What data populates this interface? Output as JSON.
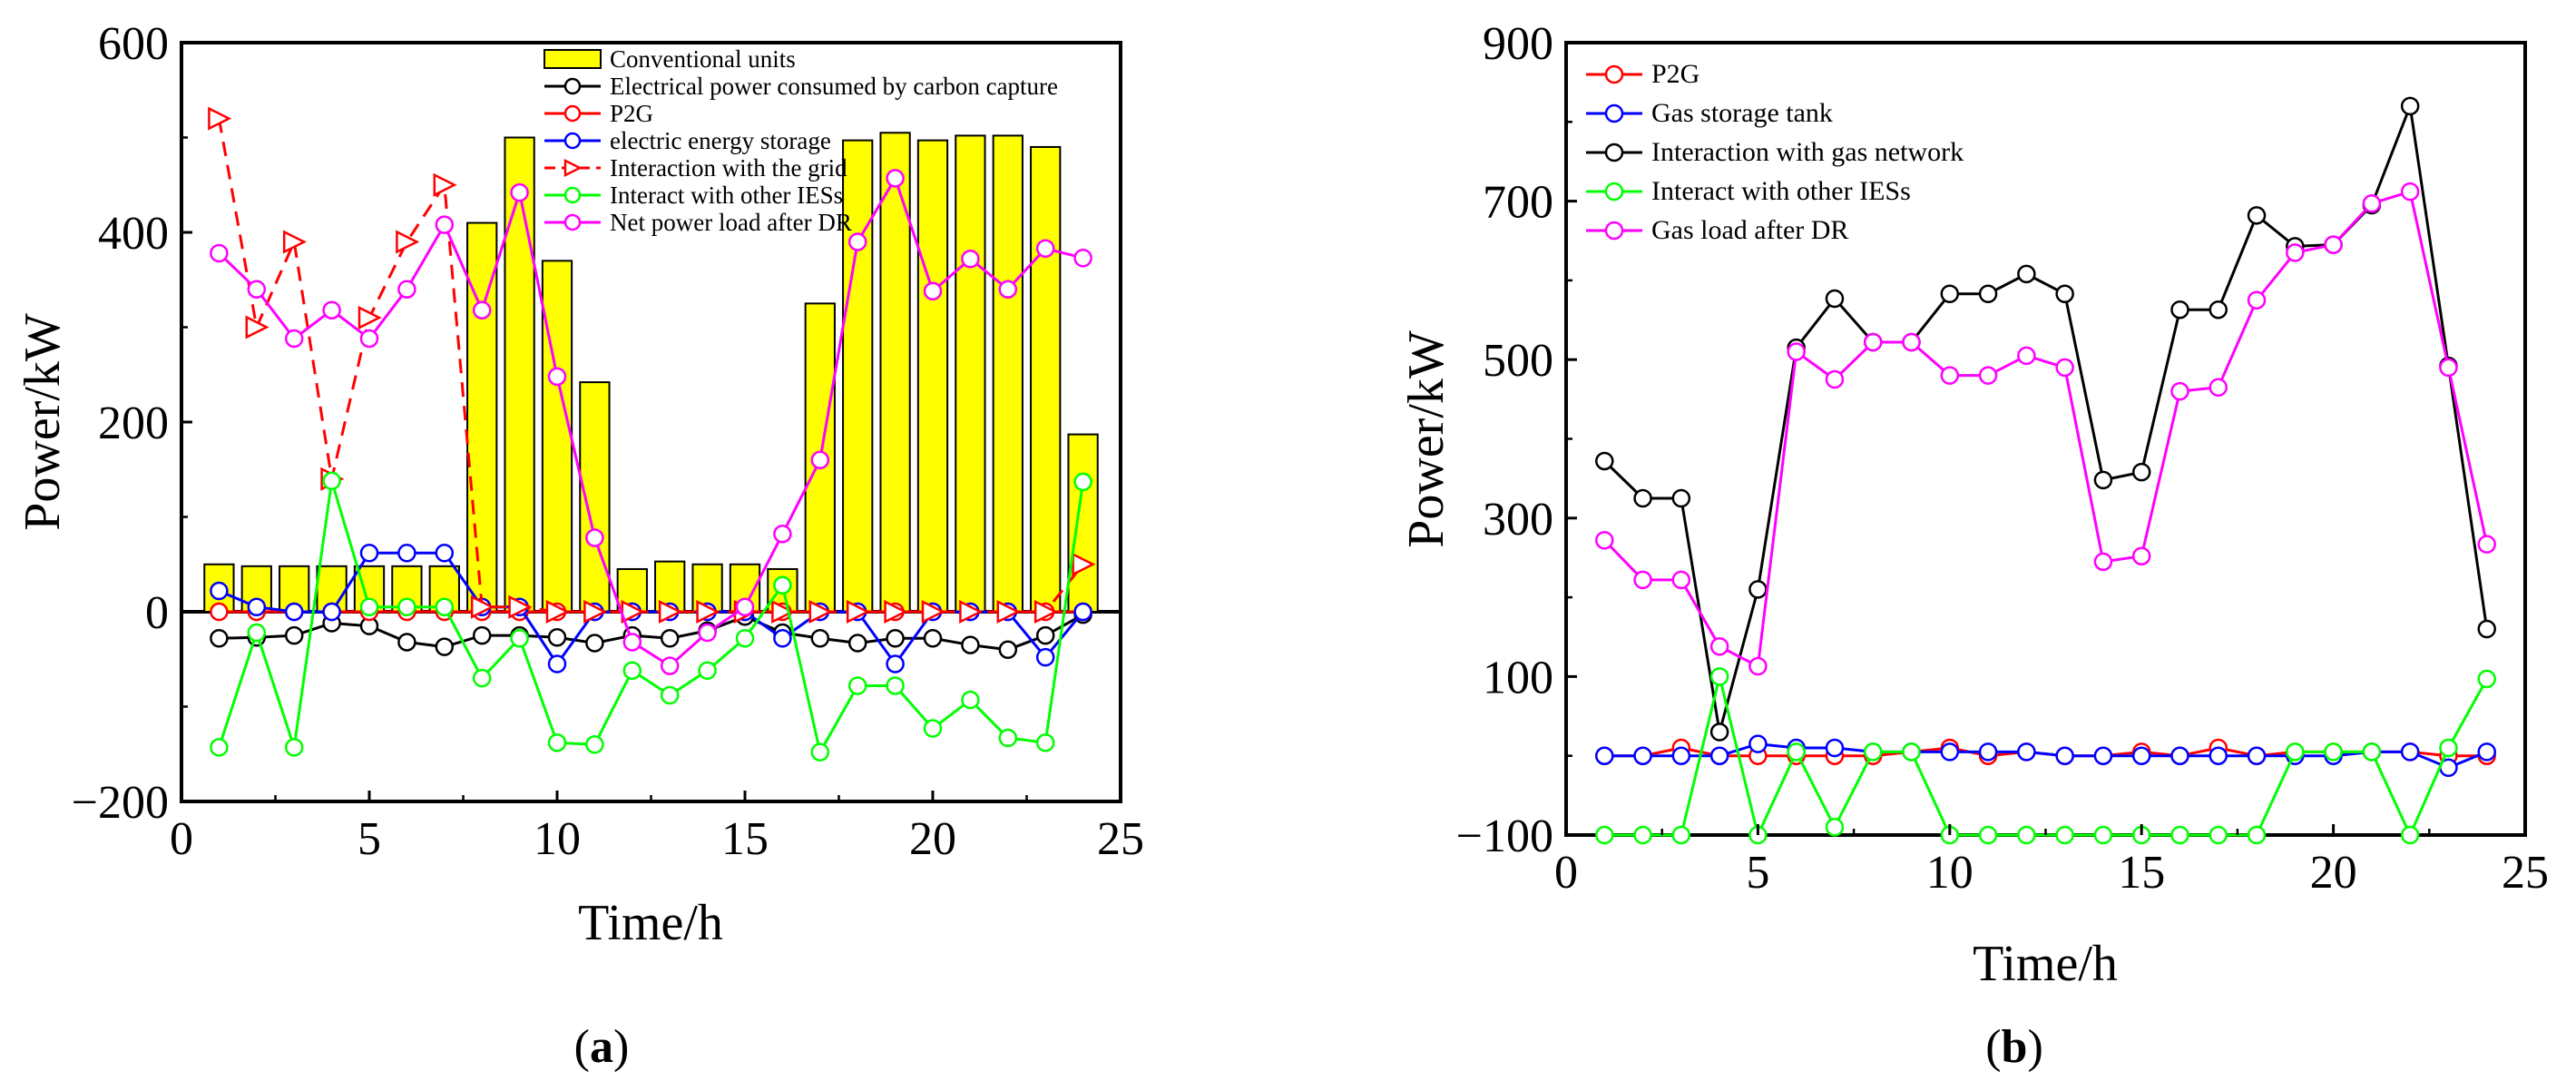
{
  "chart_data": [
    {
      "id": "a",
      "type": "bar+line",
      "caption_open": "(",
      "caption_letter": "a",
      "caption_close": ")",
      "xlabel": "Time/h",
      "ylabel": "Power/kW",
      "xlim": [
        0,
        25
      ],
      "ylim": [
        -200,
        600
      ],
      "xticks": [
        0,
        5,
        10,
        15,
        20,
        25
      ],
      "yticks": [
        -200,
        0,
        200,
        400,
        600
      ],
      "ytick_labels": [
        "−200",
        "0",
        "200",
        "400",
        "600"
      ],
      "x": [
        1,
        2,
        3,
        4,
        5,
        6,
        7,
        8,
        9,
        10,
        11,
        12,
        13,
        14,
        15,
        16,
        17,
        18,
        19,
        20,
        21,
        22,
        23,
        24
      ],
      "bars": {
        "name": "Conventional units",
        "color": "#ffff00",
        "values": [
          50,
          48,
          48,
          48,
          48,
          48,
          48,
          410,
          500,
          370,
          242,
          45,
          53,
          50,
          50,
          45,
          325,
          497,
          505,
          497,
          502,
          502,
          490,
          187
        ]
      },
      "series": [
        {
          "name": "Electrical power consumed by carbon capture",
          "color": "#000000",
          "marker": "circle",
          "dash": false,
          "values": [
            -28,
            -27,
            -25,
            -12,
            -15,
            -32,
            -37,
            -25,
            -25,
            -27,
            -33,
            -25,
            -28,
            -20,
            -5,
            -22,
            -28,
            -33,
            -28,
            -28,
            -35,
            -40,
            -25,
            -3
          ]
        },
        {
          "name": "P2G",
          "color": "#ff0000",
          "marker": "circle",
          "dash": false,
          "values": [
            0,
            0,
            0,
            0,
            0,
            0,
            0,
            0,
            0,
            0,
            0,
            0,
            0,
            0,
            0,
            0,
            0,
            0,
            0,
            0,
            0,
            0,
            0,
            0
          ]
        },
        {
          "name": "electric energy storage",
          "color": "#0000ff",
          "marker": "circle",
          "dash": false,
          "values": [
            22,
            5,
            0,
            0,
            62,
            62,
            62,
            5,
            5,
            -55,
            0,
            0,
            0,
            0,
            0,
            -28,
            0,
            0,
            -55,
            0,
            0,
            0,
            -48,
            0
          ]
        },
        {
          "name": "Interaction with the grid",
          "color": "#ff0000",
          "marker": "triangle",
          "dash": true,
          "values": [
            520,
            300,
            390,
            140,
            310,
            390,
            450,
            5,
            5,
            0,
            0,
            0,
            0,
            0,
            0,
            0,
            0,
            0,
            0,
            0,
            0,
            0,
            0,
            50
          ]
        },
        {
          "name": "Interact with other IESs",
          "color": "#00ff00",
          "marker": "circle",
          "dash": false,
          "values": [
            -143,
            -22,
            -143,
            138,
            5,
            5,
            5,
            -70,
            -28,
            -138,
            -140,
            -62,
            -88,
            -62,
            -28,
            28,
            -148,
            -78,
            -78,
            -123,
            -93,
            -133,
            -138,
            137
          ]
        },
        {
          "name": "Net power load after DR",
          "color": "#ff00ff",
          "marker": "circle",
          "dash": false,
          "values": [
            378,
            340,
            288,
            318,
            288,
            340,
            408,
            318,
            442,
            248,
            78,
            -32,
            -57,
            -22,
            5,
            82,
            160,
            390,
            457,
            338,
            372,
            340,
            383,
            373
          ]
        }
      ]
    },
    {
      "id": "b",
      "type": "line",
      "caption_open": "(",
      "caption_letter": "b",
      "caption_close": ")",
      "xlabel": "Time/h",
      "ylabel": "Power/kW",
      "xlim": [
        0,
        25
      ],
      "ylim": [
        -100,
        900
      ],
      "xticks": [
        0,
        5,
        10,
        15,
        20,
        25
      ],
      "yticks": [
        -100,
        100,
        300,
        500,
        700,
        900
      ],
      "ytick_labels": [
        "−100",
        "100",
        "300",
        "500",
        "700",
        "900"
      ],
      "x": [
        1,
        2,
        3,
        4,
        5,
        6,
        7,
        8,
        9,
        10,
        11,
        12,
        13,
        14,
        15,
        16,
        17,
        18,
        19,
        20,
        21,
        22,
        23,
        24
      ],
      "series": [
        {
          "name": "P2G",
          "color": "#ff0000",
          "marker": "circle",
          "dash": false,
          "values": [
            0,
            0,
            10,
            0,
            0,
            0,
            0,
            0,
            5,
            10,
            0,
            5,
            0,
            0,
            5,
            0,
            10,
            0,
            5,
            5,
            5,
            5,
            0,
            0
          ]
        },
        {
          "name": "Gas storage tank",
          "color": "#0000ff",
          "marker": "circle",
          "dash": false,
          "values": [
            0,
            0,
            0,
            0,
            15,
            10,
            10,
            5,
            5,
            5,
            5,
            5,
            0,
            0,
            0,
            0,
            0,
            0,
            0,
            0,
            5,
            5,
            -15,
            5
          ]
        },
        {
          "name": "Interaction with gas network",
          "color": "#000000",
          "marker": "circle",
          "dash": false,
          "values": [
            372,
            325,
            325,
            30,
            210,
            515,
            577,
            522,
            522,
            583,
            583,
            608,
            583,
            348,
            358,
            563,
            563,
            682,
            643,
            645,
            695,
            820,
            492,
            160
          ]
        },
        {
          "name": "Interact with other IESs",
          "color": "#00ff00",
          "marker": "circle",
          "dash": false,
          "values": [
            -100,
            -100,
            -100,
            100,
            -100,
            5,
            -90,
            5,
            5,
            -100,
            -100,
            -100,
            -100,
            -100,
            -100,
            -100,
            -100,
            -100,
            5,
            5,
            5,
            -100,
            10,
            97
          ]
        },
        {
          "name": "Gas load after DR",
          "color": "#ff00ff",
          "marker": "circle",
          "dash": false,
          "values": [
            272,
            222,
            222,
            138,
            113,
            510,
            475,
            522,
            522,
            480,
            480,
            505,
            490,
            245,
            252,
            460,
            465,
            575,
            635,
            645,
            697,
            712,
            490,
            267
          ]
        }
      ]
    }
  ]
}
